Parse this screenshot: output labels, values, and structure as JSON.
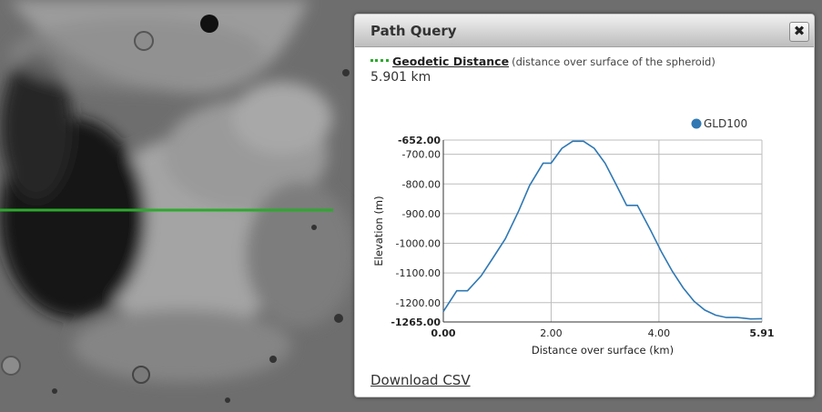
{
  "panel": {
    "title": "Path Query",
    "close_label": "✖",
    "measure_label": "Geodetic Distance",
    "measure_description": "(distance over surface of the spheroid)",
    "distance_value": "5.901 km",
    "download_label": "Download CSV"
  },
  "colors": {
    "path_line": "#2ea82e",
    "series": "#2f78b4"
  },
  "icons": {
    "close": "close-icon",
    "legend_line": "dotted-line-icon"
  },
  "chart_data": {
    "type": "line",
    "xlabel": "Distance over surface (km)",
    "ylabel": "Elevation (m)",
    "xlim": [
      0,
      5.91
    ],
    "ylim": [
      -1265,
      -652
    ],
    "x_ticks": [
      "0.00",
      "2.00",
      "4.00",
      "5.91"
    ],
    "y_ticks": [
      "-652.00",
      "-700.00",
      "-800.00",
      "-900.00",
      "-1000.00",
      "-1100.00",
      "-1200.00",
      "-1265.00"
    ],
    "legend_position": "top-right",
    "series": [
      {
        "name": "GLD100",
        "x": [
          0.0,
          0.25,
          0.45,
          0.7,
          0.9,
          1.15,
          1.4,
          1.6,
          1.85,
          2.0,
          2.2,
          2.4,
          2.6,
          2.8,
          3.0,
          3.2,
          3.4,
          3.6,
          3.85,
          4.05,
          4.25,
          4.45,
          4.65,
          4.85,
          5.05,
          5.25,
          5.45,
          5.7,
          5.91
        ],
        "y": [
          -1230,
          -1160,
          -1160,
          -1110,
          -1055,
          -985,
          -890,
          -805,
          -730,
          -730,
          -680,
          -656,
          -656,
          -680,
          -730,
          -800,
          -872,
          -872,
          -958,
          -1030,
          -1095,
          -1150,
          -1195,
          -1225,
          -1242,
          -1250,
          -1250,
          -1255,
          -1254
        ]
      }
    ]
  }
}
